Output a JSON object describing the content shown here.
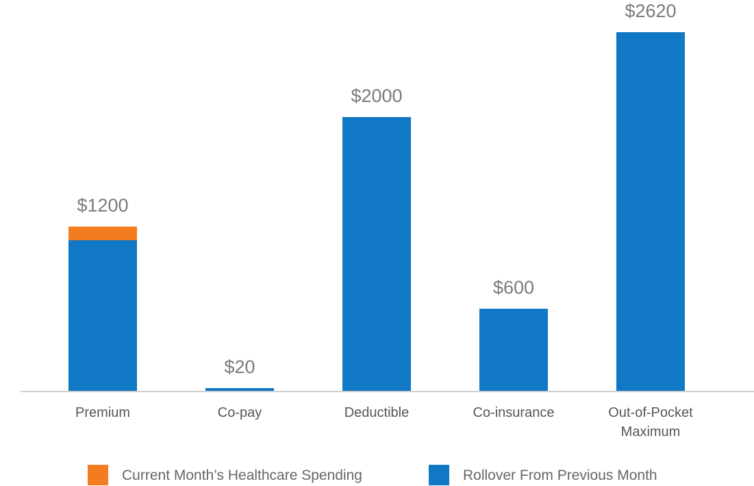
{
  "chart_data": {
    "type": "bar",
    "stacked": true,
    "title": "",
    "xlabel": "",
    "ylabel": "",
    "ylim": [
      0,
      2620
    ],
    "grid": false,
    "legend_position": "bottom",
    "categories": [
      [
        "Premium"
      ],
      [
        "Co-pay"
      ],
      [
        "Deductible"
      ],
      [
        "Co-insurance"
      ],
      [
        "Out-of-Pocket",
        "Maximum"
      ]
    ],
    "totals": [
      1200,
      20,
      2000,
      600,
      2620
    ],
    "total_labels": [
      "$1200",
      "$20",
      "$2000",
      "$600",
      "$2620"
    ],
    "series": [
      {
        "name": "Rollover From Previous Month",
        "color": "#1078c4",
        "values": [
          1100,
          20,
          2000,
          600,
          2620
        ]
      },
      {
        "name": "Current Month’s Healthcare Spending",
        "color": "#f47c20",
        "values": [
          100,
          0,
          0,
          0,
          0
        ]
      }
    ],
    "legend_order": [
      1,
      0
    ]
  }
}
